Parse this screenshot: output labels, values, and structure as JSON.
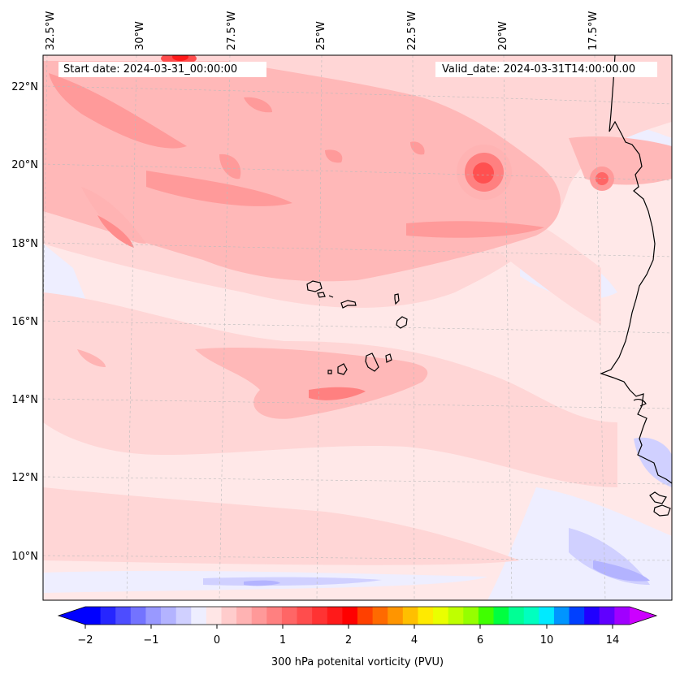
{
  "map": {
    "start_date": "Start date: 2024-03-31_00:00:00",
    "valid_date": "Valid_date: 2024-03-31T14:00:00.00",
    "lon_labels": [
      "32.5°W",
      "30°W",
      "27.5°W",
      "25°W",
      "22.5°W",
      "20°W",
      "17.5°W"
    ],
    "lat_labels": [
      "22°N",
      "20°N",
      "18°N",
      "16°N",
      "14°N",
      "12°N",
      "10°N"
    ],
    "extent": {
      "lon_min": -33.0,
      "lon_max": -15.5,
      "lat_min": 9.0,
      "lat_max": 22.8
    },
    "variable": "300 hPa potential vorticity",
    "gridlines": true,
    "coastline_color": "#000000"
  },
  "colorbar": {
    "label": "300 hPa potenital vorticity (PVU)",
    "tick_labels": [
      "−2",
      "−1",
      "0",
      "1",
      "2",
      "4",
      "6",
      "10",
      "14"
    ],
    "extend": "both",
    "colors": [
      "#0000ff",
      "#2626ff",
      "#4d4dff",
      "#7373ff",
      "#9999ff",
      "#b3b3ff",
      "#d0d0ff",
      "#eeeeff",
      "#ffe6e6",
      "#ffcccc",
      "#ffb3b3",
      "#ff9999",
      "#ff8080",
      "#ff6666",
      "#ff4d4d",
      "#ff3333",
      "#ff1a1a",
      "#ff0000",
      "#ff4000",
      "#ff6a00",
      "#ff9500",
      "#ffbf00",
      "#ffea00",
      "#eaff00",
      "#bfff00",
      "#95ff00",
      "#40ff00",
      "#00ff40",
      "#00ff95",
      "#00ffbf",
      "#00eaff",
      "#0095ff",
      "#0040ff",
      "#2000ff",
      "#6000ff",
      "#a000ff"
    ],
    "under_color": "#0000ff",
    "over_color": "#cc00ff"
  }
}
